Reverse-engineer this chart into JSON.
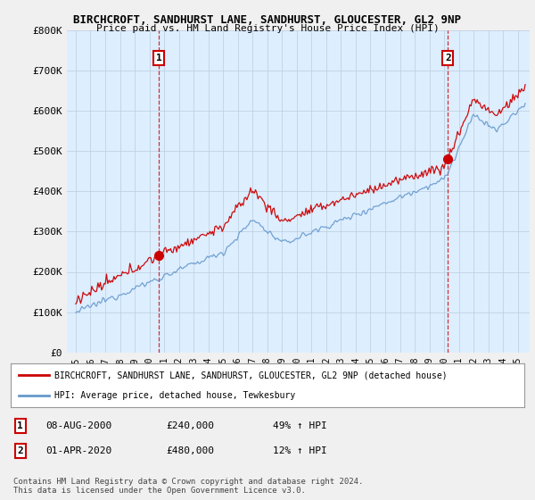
{
  "title": "BIRCHCROFT, SANDHURST LANE, SANDHURST, GLOUCESTER, GL2 9NP",
  "subtitle": "Price paid vs. HM Land Registry's House Price Index (HPI)",
  "sale1_date": "08-AUG-2000",
  "sale1_price": 240000,
  "sale1_year": 2000.625,
  "sale1_label": "49% ↑ HPI",
  "sale2_date": "01-APR-2020",
  "sale2_price": 480000,
  "sale2_year": 2020.25,
  "sale2_label": "12% ↑ HPI",
  "legend_line1": "BIRCHCROFT, SANDHURST LANE, SANDHURST, GLOUCESTER, GL2 9NP (detached house)",
  "legend_line2": "HPI: Average price, detached house, Tewkesbury",
  "footer1": "Contains HM Land Registry data © Crown copyright and database right 2024.",
  "footer2": "This data is licensed under the Open Government Licence v3.0.",
  "red_color": "#cc0000",
  "blue_color": "#6699cc",
  "background_color": "#f0f0f0",
  "plot_bg_color": "#ddeeff",
  "ylim": [
    0,
    800000
  ],
  "yticks": [
    0,
    100000,
    200000,
    300000,
    400000,
    500000,
    600000,
    700000,
    800000
  ],
  "x_start_year": 1995,
  "x_end_year": 2025
}
